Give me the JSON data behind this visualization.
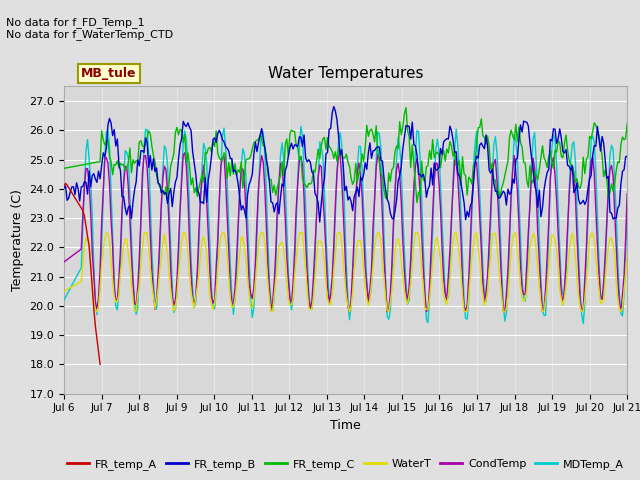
{
  "title": "Water Temperatures",
  "xlabel": "Time",
  "ylabel": "Temperature (C)",
  "ylim": [
    17.0,
    27.5
  ],
  "yticks": [
    17.0,
    18.0,
    19.0,
    20.0,
    21.0,
    22.0,
    23.0,
    24.0,
    25.0,
    26.0,
    27.0
  ],
  "xtick_labels": [
    "Jul 6",
    "Jul 7",
    "Jul 8",
    "Jul 9",
    "Jul 10",
    "Jul 11",
    "Jul 12",
    "Jul 13",
    "Jul 14",
    "Jul 15",
    "Jul 16",
    "Jul 17",
    "Jul 18",
    "Jul 19",
    "Jul 20",
    "Jul 21"
  ],
  "colors": {
    "FR_temp_A": "#cc0000",
    "FR_temp_B": "#0000cc",
    "FR_temp_C": "#00bb00",
    "WaterT": "#dddd00",
    "CondTemp": "#aa00aa",
    "MDTemp_A": "#00cccc"
  },
  "annotation_text1": "No data for f_FD_Temp_1",
  "annotation_text2": "No data for f_WaterTemp_CTD",
  "mb_tule_label": "MB_tule",
  "plot_bg_color": "#d8d8d8",
  "fig_bg_color": "#e0e0e0",
  "legend_items": [
    "FR_temp_A",
    "FR_temp_B",
    "FR_temp_C",
    "WaterT",
    "CondTemp",
    "MDTemp_A"
  ]
}
